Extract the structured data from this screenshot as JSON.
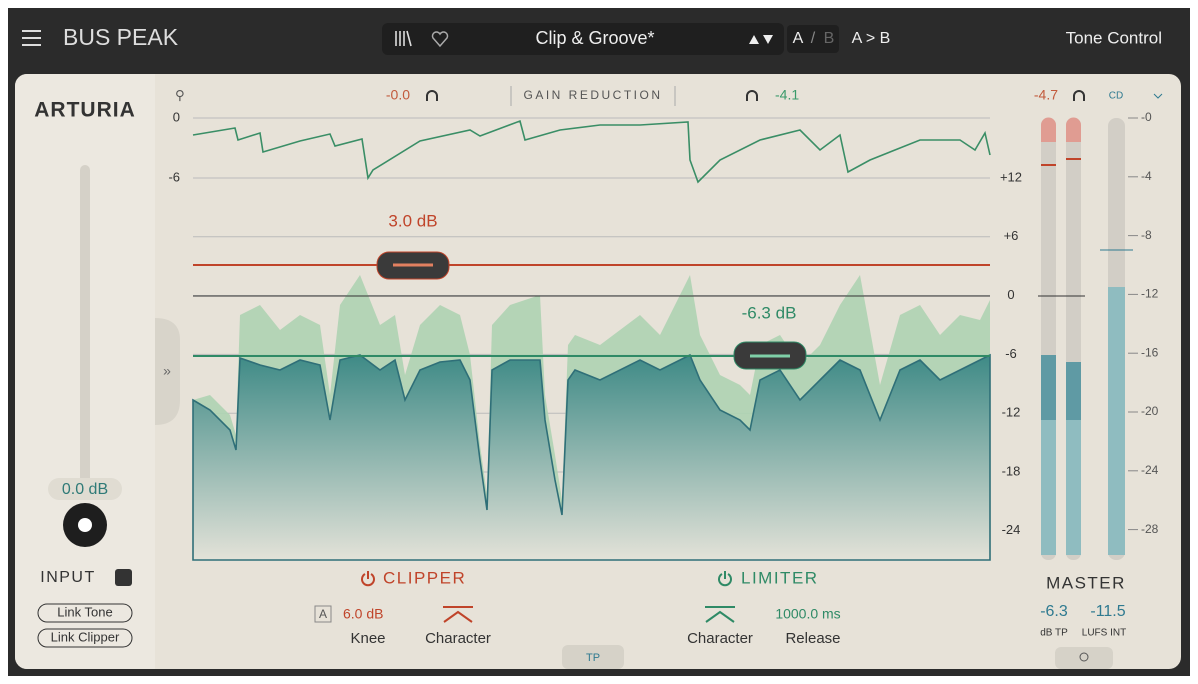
{
  "header": {
    "title": "BUS PEAK",
    "preset": "Clip & Groove*",
    "ab_a": "A",
    "ab_sep": "/",
    "ab_b": "B",
    "copy": "A > B",
    "tone_control": "Tone Control"
  },
  "brand": "ARTURIA",
  "input": {
    "gain": "0.0 dB",
    "label": "INPUT",
    "link_tone": "Link Tone",
    "link_clipper": "Link Clipper"
  },
  "display": {
    "input_peak": "-0.0",
    "title": "GAIN REDUCTION",
    "gr_peak": "-4.1",
    "gr_ticks": [
      "0",
      "-6"
    ],
    "ticks": [
      "+12",
      "+6",
      "0",
      "-6",
      "-12",
      "-18",
      "-24"
    ],
    "clipper_threshold": "3.0 dB",
    "limiter_threshold": "-6.3 dB",
    "tab": "TP"
  },
  "clipper": {
    "title": "CLIPPER",
    "mode": "A",
    "knee": "6.0 dB",
    "knee_label": "Knee",
    "character_label": "Character"
  },
  "limiter": {
    "title": "LIMITER",
    "release": "1000.0 ms",
    "character_label": "Character",
    "release_label": "Release"
  },
  "master": {
    "peak": "-4.7",
    "mode": "CD",
    "ticks": [
      "-0",
      "-4",
      "-8",
      "-12",
      "-16",
      "-20",
      "-24",
      "-28"
    ],
    "title": "MASTER",
    "true_peak": "-6.3",
    "true_peak_unit": "dB TP",
    "lufs": "-11.5",
    "lufs_unit": "LUFS INT"
  }
}
